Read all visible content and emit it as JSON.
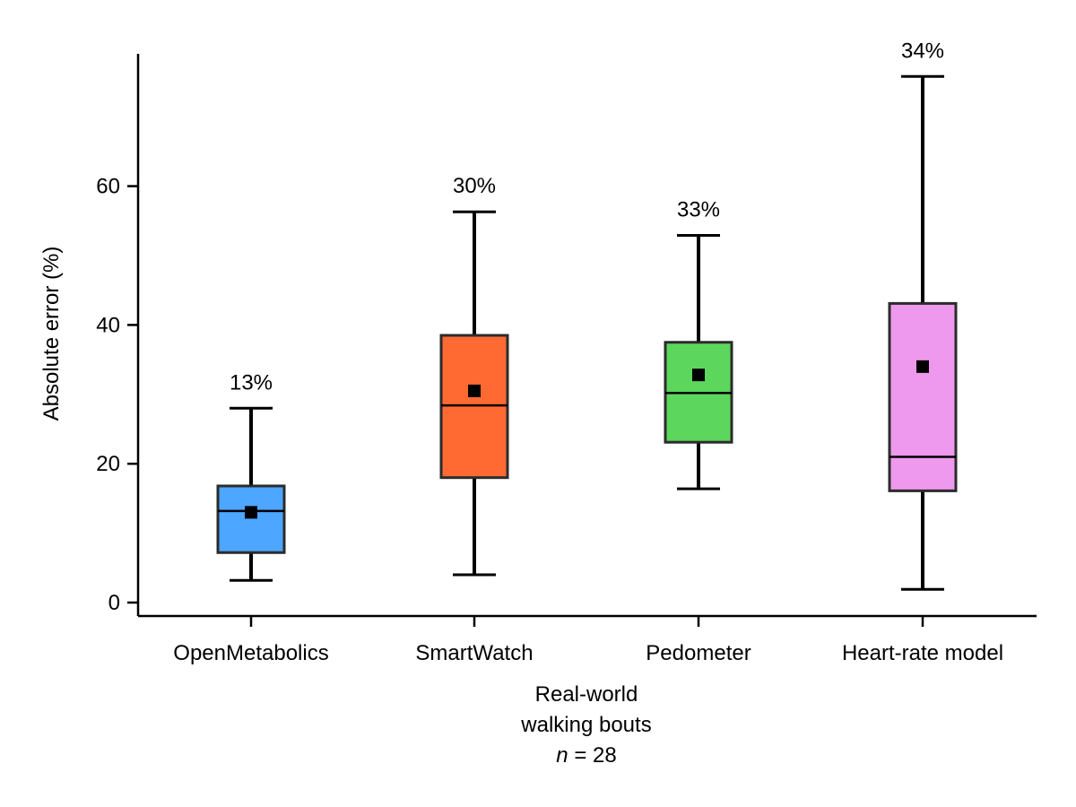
{
  "chart_data": {
    "type": "box",
    "ylabel": "Absolute error (%)",
    "xlabel_lines": [
      "Real-world",
      "walking bouts"
    ],
    "n_label": {
      "italic": "n",
      "rest": " = 28"
    },
    "ylim": [
      -2,
      80
    ],
    "yticks": [
      0,
      20,
      40,
      60
    ],
    "grid": false,
    "categories": [
      "OpenMetabolics",
      "SmartWatch",
      "Pedometer",
      "Heart-rate model"
    ],
    "boxes": [
      {
        "name": "OpenMetabolics",
        "whisker_low": 3.2,
        "q1": 7.2,
        "median": 13.2,
        "q3": 16.8,
        "whisker_high": 28.0,
        "mean": 13.0,
        "mean_label": "13%",
        "color": "#4da6ff"
      },
      {
        "name": "SmartWatch",
        "whisker_low": 4.0,
        "q1": 18.0,
        "median": 28.4,
        "q3": 38.5,
        "whisker_high": 56.3,
        "mean": 30.5,
        "mean_label": "30%",
        "color": "#ff6a33"
      },
      {
        "name": "Pedometer",
        "whisker_low": 16.4,
        "q1": 23.1,
        "median": 30.2,
        "q3": 37.5,
        "whisker_high": 52.9,
        "mean": 32.8,
        "mean_label": "33%",
        "color": "#5cd65c"
      },
      {
        "name": "Heart-rate model",
        "whisker_low": 1.9,
        "q1": 16.1,
        "median": 21.0,
        "q3": 43.1,
        "whisker_high": 75.8,
        "mean": 34.0,
        "mean_label": "34%",
        "color": "#ee99ee"
      }
    ]
  }
}
